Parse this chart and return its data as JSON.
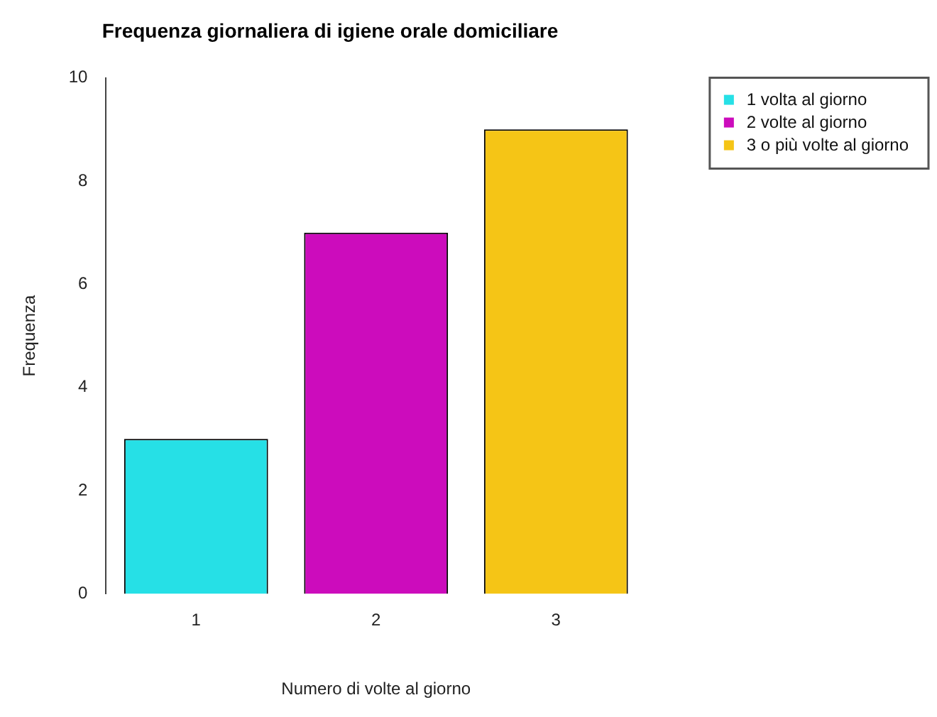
{
  "chart_data": {
    "type": "bar",
    "title": "Frequenza giornaliera di igiene orale domiciliare",
    "xlabel": "Numero di volte al giorno",
    "ylabel": "Frequenza",
    "categories": [
      "1",
      "2",
      "3"
    ],
    "series": [
      {
        "name": "1 volta al giorno",
        "color": "#26e0e6",
        "values": [
          3,
          null,
          null
        ]
      },
      {
        "name": "2 volte al giorno",
        "color": "#cc0cbc",
        "values": [
          null,
          7,
          null
        ]
      },
      {
        "name": "3 o più volte al giorno",
        "color": "#f5c516",
        "values": [
          null,
          null,
          9
        ]
      }
    ],
    "ylim": [
      0,
      10
    ],
    "yticks": [
      0,
      2,
      4,
      6,
      8,
      10
    ],
    "grid": false,
    "legend": "top right"
  }
}
